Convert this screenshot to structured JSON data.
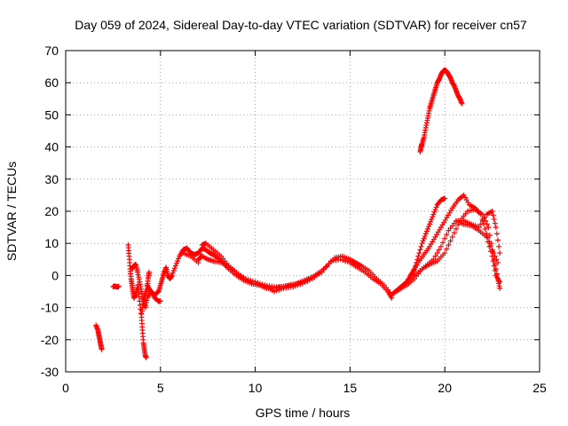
{
  "chart_data": {
    "type": "scatter",
    "title": "Day 059 of 2024, Sidereal Day-to-day VTEC variation (SDTVAR) for receiver cn57",
    "xlabel": "GPS time / hours",
    "ylabel": "SDTVAR / TECUs",
    "xlim": [
      0,
      25
    ],
    "ylim": [
      -30,
      70
    ],
    "xticks": [
      0,
      5,
      10,
      15,
      20,
      25
    ],
    "yticks": [
      -30,
      -20,
      -10,
      0,
      10,
      20,
      30,
      40,
      50,
      60,
      70
    ],
    "grid": true,
    "marker": "plus",
    "color": "#ff0000",
    "series": [
      {
        "name": "s1",
        "x": [
          1.6,
          1.7,
          1.75,
          1.8,
          1.85,
          1.9
        ],
        "y": [
          -15.5,
          -17,
          -18.5,
          -20,
          -21.5,
          -23
        ]
      },
      {
        "name": "s2",
        "x": [
          2.5,
          2.6,
          2.7,
          2.8
        ],
        "y": [
          -3.5,
          -3.3,
          -3.6,
          -3.4
        ]
      },
      {
        "name": "s3",
        "x": [
          3.3,
          3.35,
          3.4,
          3.45,
          3.5,
          3.55,
          3.6,
          3.7,
          3.8,
          3.9,
          4.0,
          4.05,
          4.1,
          4.15,
          4.2,
          4.25
        ],
        "y": [
          9.5,
          6,
          2,
          -1,
          -3,
          -5,
          -7,
          -6,
          -3,
          -8,
          -13,
          -17,
          -21,
          -23,
          -25,
          -25.5
        ]
      },
      {
        "name": "s4",
        "x": [
          3.5,
          3.6,
          3.7,
          3.8,
          3.9,
          4.0,
          4.1,
          4.2,
          4.3,
          4.5,
          4.7,
          4.9,
          5.0
        ],
        "y": [
          2,
          3,
          3.5,
          1,
          -2,
          -5,
          -8,
          -10,
          -7,
          -5,
          -7,
          -8,
          -8
        ]
      },
      {
        "name": "s5",
        "x": [
          4.0,
          4.1,
          4.2,
          4.3,
          4.35,
          4.4
        ],
        "y": [
          -12,
          -8,
          -6,
          -4,
          -1,
          1
        ]
      },
      {
        "name": "s6",
        "x": [
          4.3,
          4.5,
          4.7,
          4.9,
          5.0,
          5.1,
          5.2,
          5.3,
          5.4,
          5.5,
          5.6,
          5.8,
          6.0,
          6.2,
          6.4,
          6.6,
          6.8,
          7.0,
          7.2,
          7.4,
          7.6,
          7.8,
          8.0,
          8.3,
          8.6,
          9.0,
          9.4,
          9.8,
          10.2,
          10.6,
          11.0,
          11.4,
          11.8,
          12.2,
          12.6,
          13.0,
          13.4,
          13.8,
          14.2,
          14.6,
          15.0,
          15.3,
          15.6,
          16.0,
          16.4,
          16.8,
          17.2
        ],
        "y": [
          -3,
          -5,
          -6,
          -5,
          -3,
          -1,
          1,
          2.5,
          0,
          -1,
          0,
          3,
          6,
          8,
          8.5,
          7,
          6.5,
          7,
          8.5,
          8,
          7,
          6.5,
          5.5,
          4,
          2,
          0,
          -1.5,
          -2.5,
          -3,
          -4,
          -4,
          -3.5,
          -3,
          -2.5,
          -1.5,
          -0.5,
          1,
          3,
          5.5,
          6,
          5,
          4,
          3,
          1.5,
          -1,
          -3,
          -6
        ]
      },
      {
        "name": "s7",
        "x": [
          6.2,
          6.6,
          7.0,
          7.2,
          7.4,
          7.8,
          8.2,
          8.6,
          9.0,
          9.4,
          9.8,
          10.2,
          10.6,
          11.0,
          11.5,
          12.0,
          12.5,
          13.0,
          13.5,
          14.0,
          14.5,
          15.0,
          15.4,
          15.8,
          16.2,
          16.6,
          17.0,
          17.2
        ],
        "y": [
          7,
          6,
          4,
          9.5,
          10,
          8,
          6,
          3,
          0.5,
          -1,
          -2.5,
          -3,
          -3.5,
          -5,
          -4,
          -3.5,
          -2.5,
          -1,
          1,
          4.5,
          5,
          4,
          2.5,
          1,
          -1,
          -2.5,
          -5,
          -7
        ]
      },
      {
        "name": "s8",
        "x": [
          7.0,
          7.2,
          7.5,
          7.8,
          8.2,
          8.6,
          9.0,
          9.5,
          10.0,
          10.5,
          11.0,
          11.5,
          12.0,
          12.5,
          13.0
        ],
        "y": [
          5,
          6,
          5,
          4.5,
          4,
          3,
          1,
          -1,
          -2,
          -3,
          -3.5,
          -3.5,
          -3,
          -2,
          -1
        ]
      },
      {
        "name": "s9",
        "x": [
          17.2,
          17.4,
          17.6,
          17.8,
          18.0,
          18.2,
          18.4,
          18.6,
          18.8,
          19.0,
          19.2,
          19.4,
          19.6,
          19.8,
          20.0
        ],
        "y": [
          -6,
          -5,
          -4,
          -3,
          -2,
          0,
          2,
          6,
          10,
          13,
          16,
          19,
          22,
          23.5,
          24
        ]
      },
      {
        "name": "s10",
        "x": [
          17.4,
          17.7,
          18.0,
          18.3,
          18.6,
          18.9,
          19.2,
          19.5,
          19.8,
          20.1,
          20.4,
          20.7,
          21.0,
          21.3,
          21.6,
          21.9,
          22.2,
          22.5,
          22.8
        ],
        "y": [
          -5,
          -4,
          -2,
          1,
          4,
          6.5,
          9,
          12,
          15,
          18,
          21,
          23.5,
          25,
          22,
          21,
          19,
          13,
          8,
          4
        ]
      },
      {
        "name": "s11",
        "x": [
          17.6,
          18.0,
          18.4,
          18.8,
          19.2,
          19.6,
          20.0,
          20.4,
          20.8,
          21.2,
          21.6,
          22.0,
          22.3,
          22.6,
          22.8,
          22.9
        ],
        "y": [
          -4,
          -3,
          -1,
          2,
          3.5,
          4.5,
          7,
          12,
          17,
          20,
          20.5,
          19,
          15,
          5,
          -1,
          -4
        ]
      },
      {
        "name": "s12",
        "x": [
          17.8,
          18.2,
          18.6,
          19.0,
          19.4,
          19.8,
          20.2,
          20.6,
          21.0,
          21.4,
          21.8,
          22.2,
          22.5,
          22.7,
          22.9
        ],
        "y": [
          -3,
          -1,
          1,
          3,
          5,
          9,
          14,
          17,
          16,
          15.5,
          14,
          12,
          6,
          0,
          -2
        ]
      },
      {
        "name": "s13",
        "x": [
          20.6,
          21.0,
          21.4,
          21.8,
          22.2,
          22.5,
          22.7,
          22.9
        ],
        "y": [
          17,
          17,
          16,
          15,
          19,
          20,
          15,
          7
        ]
      },
      {
        "name": "s14",
        "x": [
          18.7,
          18.75,
          18.8,
          18.9,
          19.0,
          19.1,
          19.2,
          19.3,
          19.4,
          19.5,
          19.6,
          19.7,
          19.8,
          19.9,
          20.0,
          20.1,
          20.2,
          20.3,
          20.4,
          20.5,
          20.6,
          20.7,
          20.8,
          20.9
        ],
        "y": [
          38.5,
          40,
          41,
          43,
          46,
          49,
          52,
          54,
          56,
          58,
          60,
          61,
          62.5,
          63.5,
          64,
          63.5,
          62.5,
          61.5,
          60,
          59,
          57.5,
          56,
          55,
          53.5
        ]
      }
    ]
  }
}
